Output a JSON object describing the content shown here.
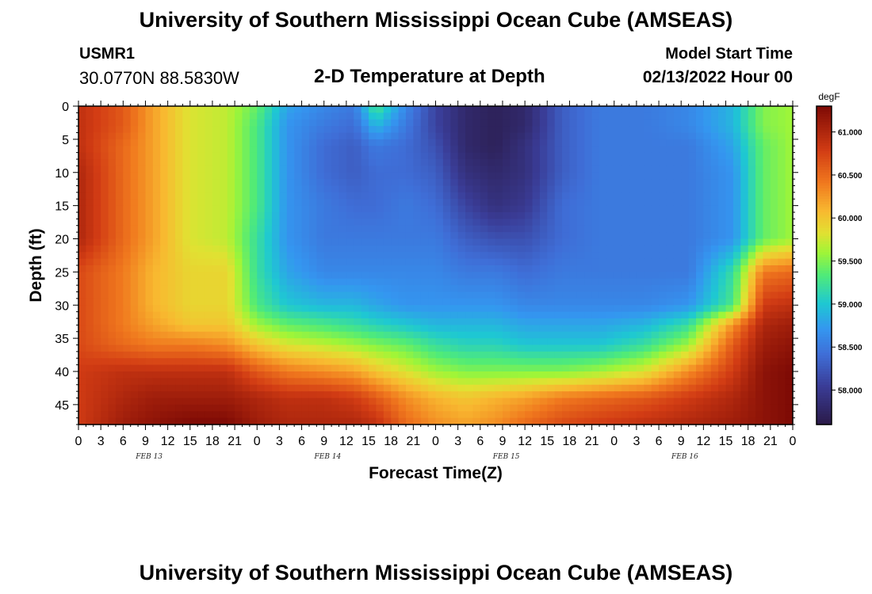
{
  "header": {
    "title": "University of Southern Mississippi Ocean Cube (AMSEAS)",
    "station_id": "USMR1",
    "coords": "30.0770N  88.5830W",
    "plot_title": "2-D Temperature at Depth",
    "model_start_label": "Model Start Time",
    "model_start_value": "02/13/2022 Hour 00"
  },
  "footer": {
    "title": "University of Southern Mississippi Ocean Cube (AMSEAS)"
  },
  "chart_data": {
    "type": "heatmap",
    "title": "2-D Temperature at Depth",
    "xlabel": "Forecast Time(Z)",
    "ylabel": "Depth (ft)",
    "x_range_hours": [
      0,
      96
    ],
    "y_range_ft": [
      0,
      48
    ],
    "x_tick_labels": [
      "0",
      "3",
      "6",
      "9",
      "12",
      "15",
      "18",
      "21",
      "0",
      "3",
      "6",
      "9",
      "12",
      "15",
      "18",
      "21",
      "0",
      "3",
      "6",
      "9",
      "12",
      "15",
      "18",
      "21",
      "0",
      "3",
      "6",
      "9",
      "12",
      "15",
      "18",
      "21",
      "0"
    ],
    "date_labels": [
      "FEB 13",
      "FEB 14",
      "FEB 15",
      "FEB 16"
    ],
    "y_ticks": [
      0,
      5,
      10,
      15,
      20,
      25,
      30,
      35,
      40,
      45
    ],
    "colorbar": {
      "unit": "degF",
      "range": [
        57.6,
        61.3
      ],
      "ticks": [
        "58.000",
        "58.500",
        "59.000",
        "59.500",
        "60.000",
        "60.500",
        "61.000"
      ],
      "tick_values": [
        58.0,
        58.5,
        59.0,
        59.5,
        60.0,
        60.5,
        61.0
      ]
    },
    "grid_hours": [
      0,
      6,
      10,
      15,
      20,
      24,
      28,
      33,
      37,
      40,
      44,
      48,
      52,
      56,
      60,
      65,
      70,
      76,
      82,
      88,
      92,
      96
    ],
    "grid_depths": [
      0,
      3,
      6,
      10,
      15,
      20,
      25,
      30,
      33,
      36,
      40,
      44,
      48
    ],
    "temperature_degF": [
      [
        60.9,
        60.6,
        60.2,
        59.8,
        59.7,
        59.4,
        58.8,
        58.6,
        58.5,
        59.3,
        58.6,
        58.1,
        57.8,
        57.7,
        57.8,
        58.3,
        58.5,
        58.5,
        58.6,
        58.9,
        59.5,
        59.6
      ],
      [
        60.9,
        60.6,
        60.2,
        59.8,
        59.7,
        59.3,
        58.7,
        58.5,
        58.4,
        58.9,
        58.5,
        58.1,
        57.8,
        57.7,
        57.8,
        58.3,
        58.5,
        58.5,
        58.6,
        58.9,
        59.5,
        59.6
      ],
      [
        60.9,
        60.5,
        60.2,
        59.8,
        59.7,
        59.3,
        58.7,
        58.4,
        58.3,
        58.5,
        58.4,
        58.2,
        57.8,
        57.7,
        57.9,
        58.3,
        58.5,
        58.5,
        58.5,
        58.8,
        59.4,
        59.6
      ],
      [
        61.0,
        60.5,
        60.2,
        59.8,
        59.7,
        59.3,
        58.7,
        58.4,
        58.3,
        58.4,
        58.4,
        58.3,
        57.9,
        57.8,
        57.9,
        58.3,
        58.5,
        58.5,
        58.5,
        58.7,
        59.4,
        59.6
      ],
      [
        61.0,
        60.5,
        60.2,
        59.8,
        59.7,
        59.3,
        58.7,
        58.5,
        58.4,
        58.4,
        58.5,
        58.4,
        58.1,
        57.9,
        58.0,
        58.4,
        58.5,
        58.5,
        58.5,
        58.7,
        59.4,
        59.6
      ],
      [
        61.0,
        60.5,
        60.2,
        59.8,
        59.7,
        59.2,
        58.7,
        58.5,
        58.5,
        58.5,
        58.5,
        58.5,
        58.3,
        58.2,
        58.2,
        58.4,
        58.5,
        58.5,
        58.5,
        58.7,
        59.4,
        59.6
      ],
      [
        60.7,
        60.4,
        60.1,
        59.9,
        59.9,
        59.2,
        58.8,
        58.6,
        58.6,
        58.6,
        58.6,
        58.6,
        58.5,
        58.5,
        58.4,
        58.5,
        58.5,
        58.5,
        58.5,
        59.2,
        60.4,
        60.5
      ],
      [
        60.7,
        60.4,
        60.1,
        59.9,
        59.9,
        59.3,
        59.0,
        58.9,
        58.9,
        58.8,
        58.7,
        58.7,
        58.7,
        58.7,
        58.6,
        58.6,
        58.6,
        58.6,
        58.7,
        59.3,
        60.8,
        60.9
      ],
      [
        60.7,
        60.4,
        60.2,
        60.0,
        60.0,
        59.6,
        59.4,
        59.3,
        59.2,
        59.1,
        59.0,
        58.9,
        58.9,
        58.9,
        58.8,
        58.8,
        58.8,
        58.9,
        59.2,
        60.3,
        61.0,
        61.1
      ],
      [
        60.7,
        60.5,
        60.4,
        60.4,
        60.3,
        60.0,
        59.8,
        59.7,
        59.6,
        59.5,
        59.4,
        59.2,
        59.1,
        59.1,
        59.0,
        59.0,
        59.0,
        59.2,
        59.6,
        60.6,
        61.1,
        61.2
      ],
      [
        60.8,
        60.9,
        60.9,
        60.9,
        60.9,
        60.6,
        60.4,
        60.3,
        60.2,
        60.0,
        59.8,
        59.6,
        59.5,
        59.5,
        59.5,
        59.5,
        59.6,
        59.8,
        60.3,
        60.8,
        61.2,
        61.3
      ],
      [
        60.8,
        61.0,
        61.1,
        61.1,
        61.1,
        61.0,
        60.9,
        60.9,
        60.8,
        60.6,
        60.3,
        60.1,
        60.0,
        60.1,
        60.2,
        60.4,
        60.5,
        60.6,
        60.8,
        61.0,
        61.2,
        61.3
      ],
      [
        60.8,
        61.1,
        61.2,
        61.3,
        61.3,
        61.1,
        61.0,
        61.0,
        61.0,
        60.9,
        60.5,
        60.3,
        60.2,
        60.3,
        60.5,
        60.7,
        60.8,
        60.9,
        61.0,
        61.1,
        61.2,
        61.3
      ]
    ]
  }
}
